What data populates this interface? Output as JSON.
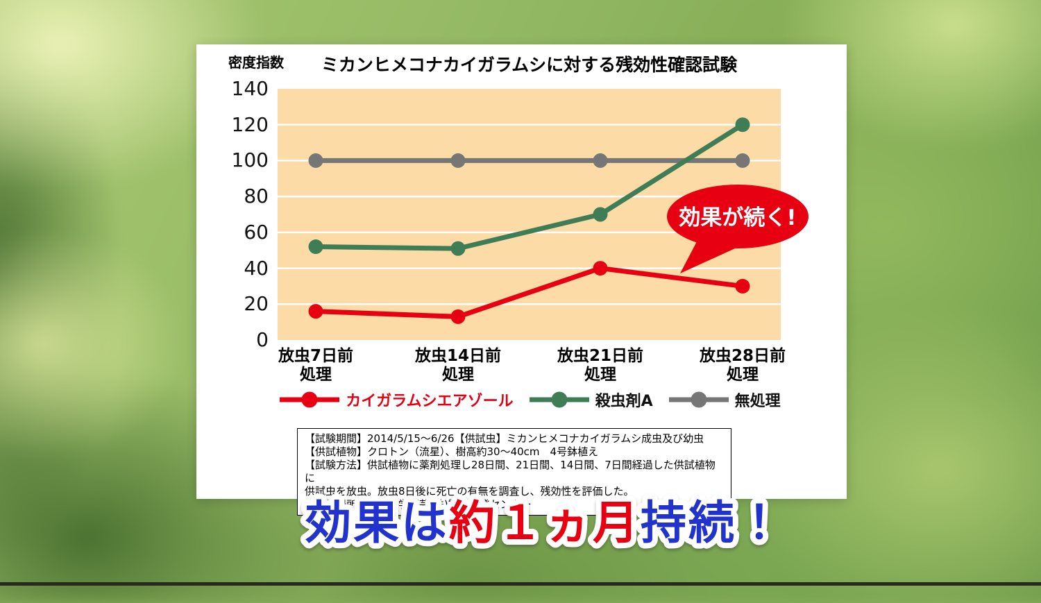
{
  "chart_data": {
    "type": "line",
    "title": "ミカンヒメコナカイガラムシに対する残効性確認試験",
    "ylabel": "密度指数",
    "xlabel": "",
    "ylim": [
      0,
      140
    ],
    "yticks": [
      0,
      20,
      40,
      60,
      80,
      100,
      120,
      140
    ],
    "grid": true,
    "legend_position": "bottom",
    "plot_bg": "#fcdba6",
    "grid_color": "#ffffff",
    "categories": [
      [
        "放虫7日前",
        "処理"
      ],
      [
        "放虫14日前",
        "処理"
      ],
      [
        "放虫21日前",
        "処理"
      ],
      [
        "放虫28日前",
        "処理"
      ]
    ],
    "series": [
      {
        "name": "カイガラムシエアゾール",
        "color": "#e60012",
        "label_color": "#e60012",
        "values": [
          16,
          13,
          40,
          30
        ]
      },
      {
        "name": "殺虫剤A",
        "color": "#3e7d56",
        "label_color": "#111111",
        "values": [
          52,
          51,
          70,
          120
        ]
      },
      {
        "name": "無処理",
        "color": "#767676",
        "label_color": "#111111",
        "values": [
          100,
          100,
          100,
          100
        ]
      }
    ],
    "annotation": {
      "text": "効果が続く!",
      "bg": "#e60012",
      "text_color": "#ffffff"
    }
  },
  "footnote": {
    "lines": [
      "【試験期間】2014/5/15〜6/26【供試虫】ミカンヒメコナカイガラムシ成虫及び幼虫",
      "【供試植物】クロトン（流星）、樹高約30〜40cm　4号鉢植え",
      "【試験方法】供試植物に薬剤処理し28日間、21日間、14日間、7日間経過した供試植物に",
      "供試虫を放虫。放虫8日後に死亡の有無を調査し、残効性を評価した。",
      "【試験場所】住友化学園芸(株)製品開発センター"
    ]
  },
  "banner": {
    "parts": [
      {
        "text": "効果は",
        "color": "#2233cc"
      },
      {
        "text": "約１ヵ月",
        "color": "#e60012"
      },
      {
        "text": "持続！",
        "color": "#2233cc"
      }
    ],
    "outline_color": "#ffffff"
  }
}
